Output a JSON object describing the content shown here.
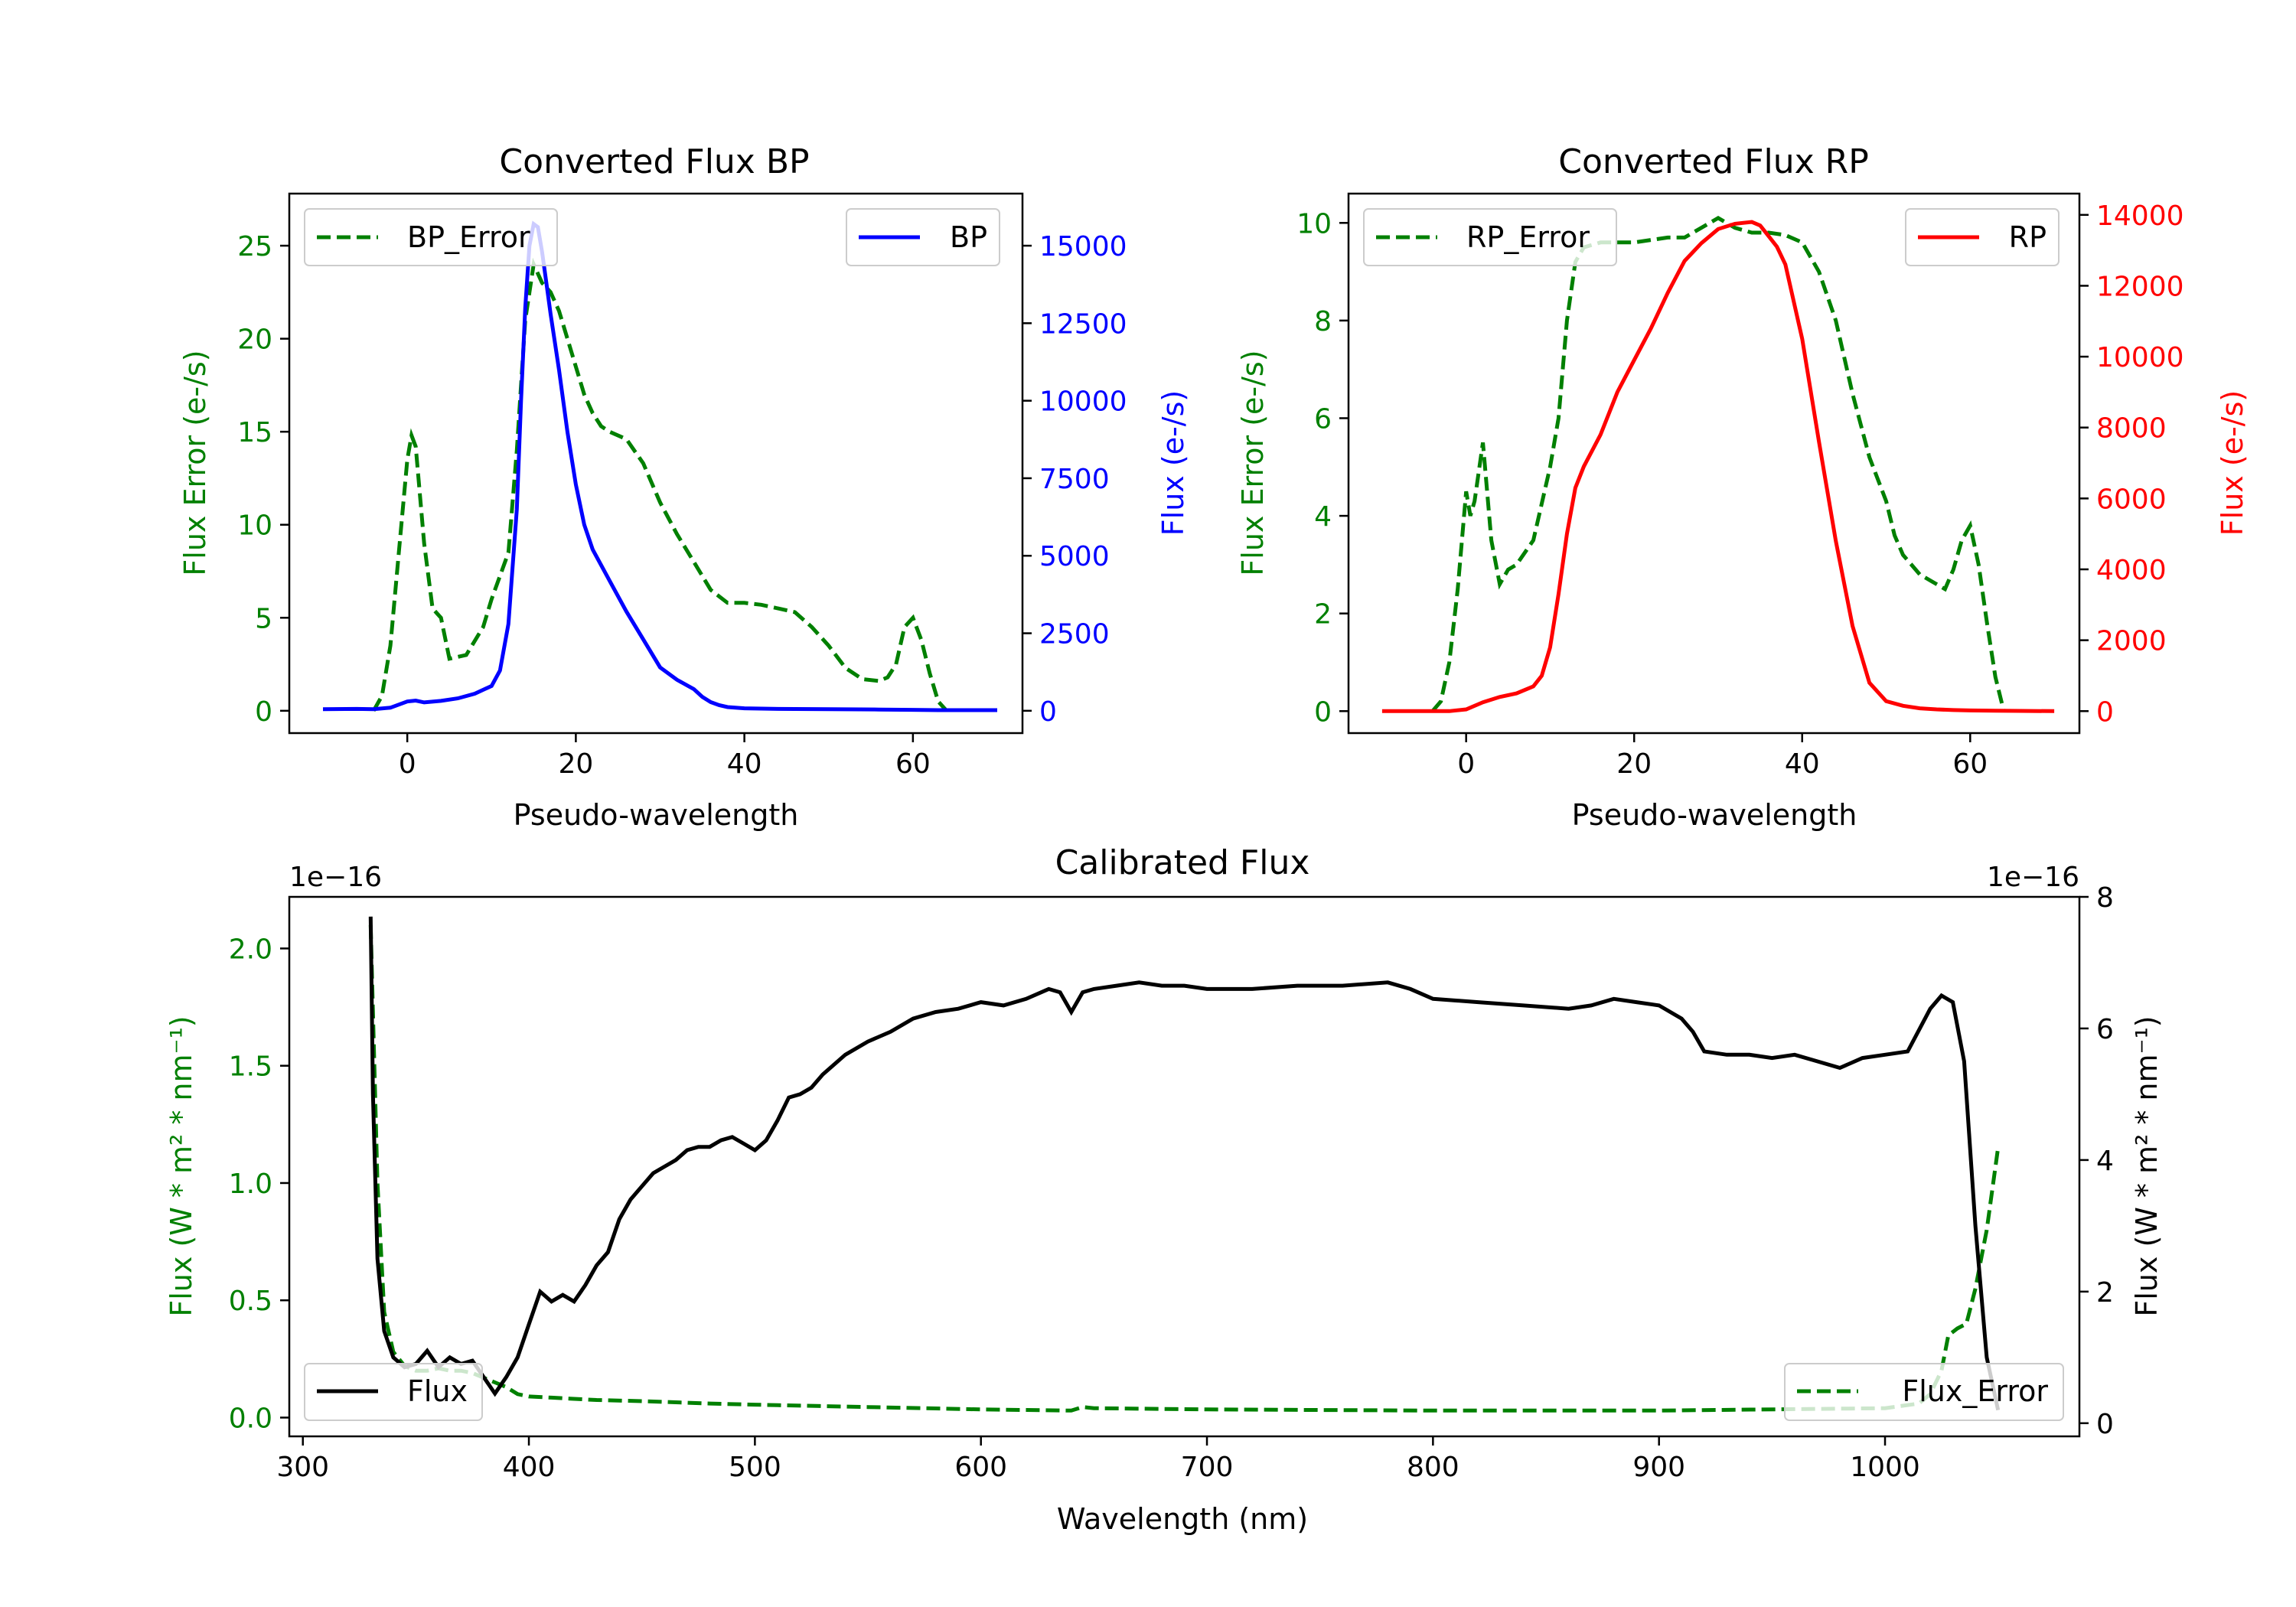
{
  "colors": {
    "error": "#008000",
    "bp": "#0000ff",
    "rp": "#ff0000",
    "flux": "#000000",
    "axis": "#000000"
  },
  "chart_data": [
    {
      "id": "bp",
      "type": "line",
      "title": "Converted Flux BP",
      "xlabel": "Pseudo-wavelength",
      "ylabel_left": "Flux Error (e-/s)",
      "ylabel_right": "Flux (e-/s)",
      "xlim": [
        -14,
        73
      ],
      "ylim_left": [
        -1.2,
        27.8
      ],
      "ylim_right": [
        -720,
        16680
      ],
      "xticks": [
        0,
        20,
        40,
        60
      ],
      "yticks_left": [
        0,
        5,
        10,
        15,
        20,
        25
      ],
      "yticks_right": [
        0,
        2500,
        5000,
        7500,
        10000,
        12500,
        15000
      ],
      "legend_left": {
        "label": "BP_Error",
        "position": "upper left"
      },
      "legend_right": {
        "label": "BP",
        "position": "upper right"
      },
      "series": [
        {
          "name": "BP_Error",
          "axis": "left",
          "color": "#008000",
          "style": "dashed",
          "x": [
            -4,
            -3,
            -2,
            -1,
            0,
            0.5,
            1,
            2,
            3,
            4,
            5,
            7,
            9,
            10,
            12,
            13,
            14,
            15,
            16,
            17,
            18,
            19,
            20,
            21,
            22,
            23,
            24,
            26,
            28,
            30,
            32,
            34,
            36,
            38,
            40,
            42,
            44,
            46,
            48,
            50,
            52,
            54,
            56,
            57,
            58,
            59,
            60,
            61,
            62,
            63,
            64
          ],
          "y": [
            0,
            0.8,
            3.5,
            8.5,
            13.5,
            14.8,
            14.2,
            9,
            5.5,
            5,
            2.8,
            3,
            4.5,
            6,
            8.5,
            14,
            21,
            24,
            23,
            22.5,
            21.5,
            20,
            18.5,
            17,
            16,
            15.3,
            15,
            14.6,
            13.3,
            11.2,
            9.5,
            8,
            6.5,
            5.8,
            5.8,
            5.7,
            5.5,
            5.3,
            4.5,
            3.5,
            2.3,
            1.7,
            1.6,
            1.8,
            2.5,
            4.5,
            5,
            3.8,
            2,
            0.5,
            0
          ]
        },
        {
          "name": "BP",
          "axis": "right",
          "color": "#0000ff",
          "style": "solid",
          "x": [
            -10,
            -6,
            -4,
            -2,
            0,
            1,
            2,
            4,
            6,
            8,
            10,
            11,
            12,
            13,
            13.5,
            14,
            14.5,
            15,
            15.5,
            16,
            16.5,
            17,
            18,
            19,
            20,
            21,
            22,
            24,
            26,
            28,
            30,
            32,
            34,
            35,
            36,
            37,
            38,
            40,
            44,
            50,
            56,
            60,
            63,
            66,
            70
          ],
          "y": [
            50,
            60,
            50,
            100,
            300,
            330,
            270,
            320,
            400,
            550,
            800,
            1300,
            2800,
            6500,
            10000,
            13000,
            15000,
            15700,
            15600,
            14800,
            13800,
            12800,
            11000,
            9000,
            7300,
            6000,
            5200,
            4200,
            3200,
            2300,
            1400,
            1000,
            700,
            450,
            280,
            180,
            120,
            80,
            60,
            50,
            40,
            30,
            20,
            20,
            20
          ]
        }
      ]
    },
    {
      "id": "rp",
      "type": "line",
      "title": "Converted Flux RP",
      "xlabel": "Pseudo-wavelength",
      "ylabel_left": "Flux Error (e-/s)",
      "ylabel_right": "Flux (e-/s)",
      "xlim": [
        -14,
        73
      ],
      "ylim_left": [
        -0.45,
        10.6
      ],
      "ylim_right": [
        -620,
        14600
      ],
      "xticks": [
        0,
        20,
        40,
        60
      ],
      "yticks_left": [
        0,
        2,
        4,
        6,
        8,
        10
      ],
      "yticks_right": [
        0,
        2000,
        4000,
        6000,
        8000,
        10000,
        12000,
        14000
      ],
      "legend_left": {
        "label": "RP_Error",
        "position": "upper left"
      },
      "legend_right": {
        "label": "RP",
        "position": "upper right"
      },
      "series": [
        {
          "name": "RP_Error",
          "axis": "left",
          "color": "#008000",
          "style": "dashed",
          "x": [
            -4,
            -3,
            -2,
            -1,
            0,
            0.5,
            1,
            2,
            2.5,
            3,
            4,
            5,
            6,
            8,
            10,
            11,
            12,
            13,
            14,
            16,
            20,
            24,
            26,
            28,
            30,
            32,
            34,
            36,
            38,
            40,
            42,
            44,
            46,
            48,
            50,
            51,
            52,
            54,
            56,
            57,
            58,
            59,
            60,
            61,
            62,
            63,
            64
          ],
          "y": [
            0,
            0.2,
            1,
            2.5,
            4.5,
            4,
            4.3,
            5.5,
            4.5,
            3.5,
            2.6,
            2.9,
            3,
            3.5,
            5,
            6,
            8,
            9.2,
            9.5,
            9.6,
            9.6,
            9.7,
            9.7,
            9.9,
            10.1,
            9.9,
            9.8,
            9.8,
            9.75,
            9.6,
            9,
            8,
            6.5,
            5.2,
            4.3,
            3.6,
            3.2,
            2.8,
            2.6,
            2.5,
            2.9,
            3.5,
            3.8,
            3,
            1.8,
            0.7,
            0
          ]
        },
        {
          "name": "RP",
          "axis": "right",
          "color": "#ff0000",
          "style": "solid",
          "x": [
            -10,
            -6,
            -2,
            0,
            2,
            4,
            6,
            8,
            9,
            10,
            11,
            12,
            13,
            14,
            16,
            18,
            20,
            22,
            24,
            26,
            28,
            30,
            32,
            34,
            35,
            36,
            37,
            38,
            40,
            42,
            44,
            46,
            48,
            50,
            52,
            54,
            56,
            58,
            60,
            63,
            66,
            70
          ],
          "y": [
            0,
            0,
            0,
            50,
            250,
            400,
            500,
            700,
            1000,
            1800,
            3300,
            5000,
            6300,
            6900,
            7800,
            9000,
            9900,
            10800,
            11800,
            12700,
            13200,
            13600,
            13750,
            13800,
            13700,
            13400,
            13100,
            12600,
            10500,
            7600,
            4800,
            2400,
            800,
            280,
            150,
            80,
            50,
            30,
            20,
            10,
            5,
            0
          ]
        }
      ]
    },
    {
      "id": "calibrated",
      "type": "line",
      "title": "Calibrated Flux",
      "xlabel": "Wavelength (nm)",
      "ylabel_left": "Flux (W * m² * nm⁻¹)",
      "ylabel_right": "Flux (W * m² * nm⁻¹)",
      "offset_left": "1e−16",
      "offset_right": "1e−16",
      "xlim": [
        294,
        1086
      ],
      "ylim_left": [
        -0.08,
        2.22
      ],
      "ylim_right": [
        -0.2,
        8.0
      ],
      "xticks": [
        300,
        400,
        500,
        600,
        700,
        800,
        900,
        1000
      ],
      "yticks_left": [
        0.0,
        0.5,
        1.0,
        1.5,
        2.0
      ],
      "yticks_left_labels": [
        "0.0",
        "0.5",
        "1.0",
        "1.5",
        "2.0"
      ],
      "yticks_right": [
        0,
        2,
        4,
        6,
        8
      ],
      "legend_left": {
        "label": "Flux",
        "position": "lower left"
      },
      "legend_right": {
        "label": "Flux_Error",
        "position": "lower right"
      },
      "series": [
        {
          "name": "Flux",
          "axis": "right",
          "color": "#000000",
          "style": "solid",
          "x": [
            330,
            331,
            333,
            336,
            340,
            345,
            350,
            355,
            360,
            365,
            370,
            375,
            380,
            385,
            390,
            395,
            400,
            405,
            410,
            415,
            420,
            425,
            430,
            435,
            440,
            445,
            450,
            455,
            460,
            465,
            470,
            475,
            480,
            485,
            490,
            495,
            500,
            505,
            510,
            515,
            520,
            525,
            530,
            540,
            550,
            560,
            570,
            580,
            590,
            600,
            610,
            620,
            630,
            635,
            640,
            645,
            650,
            660,
            670,
            680,
            690,
            700,
            720,
            740,
            760,
            780,
            790,
            800,
            820,
            840,
            860,
            870,
            880,
            890,
            900,
            910,
            915,
            920,
            930,
            940,
            950,
            960,
            970,
            980,
            990,
            1000,
            1010,
            1020,
            1025,
            1030,
            1035,
            1040,
            1045,
            1050
          ],
          "y": [
            7.7,
            5.0,
            2.5,
            1.4,
            1.0,
            0.85,
            0.9,
            1.1,
            0.85,
            1.0,
            0.9,
            0.95,
            0.7,
            0.45,
            0.7,
            1.0,
            1.5,
            2.0,
            1.85,
            1.95,
            1.85,
            2.1,
            2.4,
            2.6,
            3.1,
            3.4,
            3.6,
            3.8,
            3.9,
            4.0,
            4.15,
            4.2,
            4.2,
            4.3,
            4.35,
            4.25,
            4.15,
            4.3,
            4.6,
            4.95,
            5.0,
            5.1,
            5.3,
            5.6,
            5.8,
            5.95,
            6.15,
            6.25,
            6.3,
            6.4,
            6.35,
            6.45,
            6.6,
            6.55,
            6.25,
            6.55,
            6.6,
            6.65,
            6.7,
            6.65,
            6.65,
            6.6,
            6.6,
            6.65,
            6.65,
            6.7,
            6.6,
            6.45,
            6.4,
            6.35,
            6.3,
            6.35,
            6.45,
            6.4,
            6.35,
            6.15,
            5.95,
            5.65,
            5.6,
            5.6,
            5.55,
            5.6,
            5.5,
            5.4,
            5.55,
            5.6,
            5.65,
            6.3,
            6.5,
            6.4,
            5.5,
            3.0,
            1.0,
            0.2
          ]
        },
        {
          "name": "Flux_Error",
          "axis": "left",
          "color": "#008000",
          "style": "dashed",
          "x": [
            330,
            333,
            336,
            340,
            345,
            350,
            355,
            360,
            365,
            370,
            375,
            380,
            385,
            390,
            395,
            400,
            410,
            420,
            430,
            450,
            480,
            500,
            550,
            600,
            640,
            645,
            650,
            700,
            800,
            900,
            1000,
            1015,
            1020,
            1025,
            1028,
            1032,
            1036,
            1040,
            1045,
            1050
          ],
          "y": [
            2.1,
            1.0,
            0.45,
            0.28,
            0.22,
            0.2,
            0.2,
            0.21,
            0.2,
            0.2,
            0.19,
            0.17,
            0.15,
            0.13,
            0.1,
            0.09,
            0.085,
            0.08,
            0.075,
            0.07,
            0.06,
            0.055,
            0.045,
            0.035,
            0.03,
            0.045,
            0.04,
            0.035,
            0.03,
            0.03,
            0.04,
            0.06,
            0.1,
            0.2,
            0.35,
            0.38,
            0.4,
            0.55,
            0.8,
            1.15
          ]
        }
      ]
    }
  ]
}
